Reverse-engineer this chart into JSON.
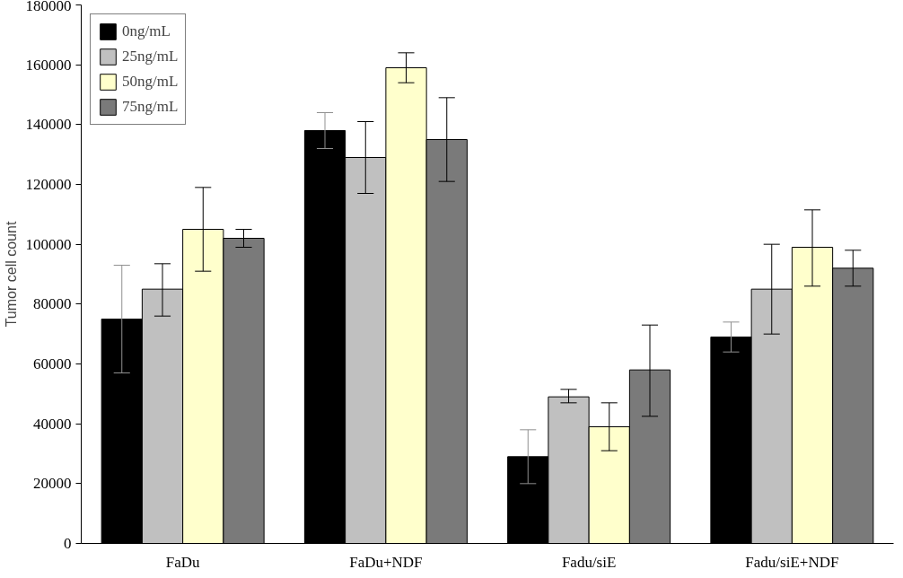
{
  "chart_data": {
    "type": "bar",
    "ylabel": "Tumor cell count",
    "categories": [
      "FaDu",
      "FaDu+NDF",
      "Fadu/siE",
      "Fadu/siE+NDF"
    ],
    "series": [
      {
        "name": "0ng/mL",
        "color": "#000000",
        "values": [
          75000,
          138000,
          29000,
          69000
        ],
        "errors": [
          [
            57000,
            93000
          ],
          [
            132000,
            144000
          ],
          [
            20000,
            38000
          ],
          [
            64000,
            74000
          ]
        ]
      },
      {
        "name": "25ng/mL",
        "color": "#c0c0c0",
        "values": [
          85000,
          129000,
          49000,
          85000
        ],
        "errors": [
          [
            76000,
            93500
          ],
          [
            117000,
            141000
          ],
          [
            47000,
            51500
          ],
          [
            70000,
            100000
          ]
        ]
      },
      {
        "name": "50ng/mL",
        "color": "#ffffcc",
        "values": [
          105000,
          159000,
          39000,
          99000
        ],
        "errors": [
          [
            91000,
            119000
          ],
          [
            154000,
            164000
          ],
          [
            31000,
            47000
          ],
          [
            86000,
            111500
          ]
        ]
      },
      {
        "name": "75ng/mL",
        "color": "#7a7a7a",
        "values": [
          102000,
          135000,
          58000,
          92000
        ],
        "errors": [
          [
            99000,
            105000
          ],
          [
            121000,
            149000
          ],
          [
            42500,
            73000
          ],
          [
            86000,
            98000
          ]
        ]
      }
    ],
    "ylim": [
      0,
      180000
    ],
    "yticks": [
      0,
      20000,
      40000,
      60000,
      80000,
      100000,
      120000,
      140000,
      160000,
      180000
    ],
    "grid": false,
    "legend": "top left"
  }
}
